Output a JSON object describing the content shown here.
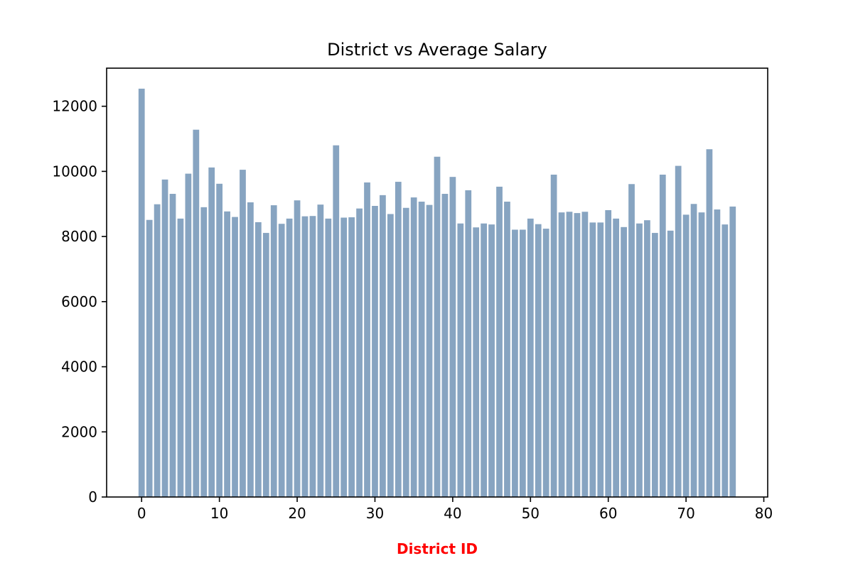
{
  "chart_data": {
    "type": "bar",
    "title": "District vs Average Salary",
    "xlabel": "District ID",
    "ylabel": "",
    "x": [
      0,
      1,
      2,
      3,
      4,
      5,
      6,
      7,
      8,
      9,
      10,
      11,
      12,
      13,
      14,
      15,
      16,
      17,
      18,
      19,
      20,
      21,
      22,
      23,
      24,
      25,
      26,
      27,
      28,
      29,
      30,
      31,
      32,
      33,
      34,
      35,
      36,
      37,
      38,
      39,
      40,
      41,
      42,
      43,
      44,
      45,
      46,
      47,
      48,
      49,
      50,
      51,
      52,
      53,
      54,
      55,
      56,
      57,
      58,
      59,
      60,
      61,
      62,
      63,
      64,
      65,
      66,
      67,
      68,
      69,
      70,
      71,
      72,
      73,
      74,
      75,
      76
    ],
    "values": [
      12540,
      8510,
      8990,
      9750,
      9310,
      8550,
      9930,
      11280,
      8900,
      10120,
      9620,
      8770,
      8600,
      10050,
      9050,
      8440,
      8110,
      8960,
      8390,
      8550,
      9110,
      8620,
      8630,
      8980,
      8550,
      10800,
      8580,
      8590,
      8860,
      9660,
      8940,
      9270,
      8690,
      9680,
      8880,
      9200,
      9070,
      8970,
      10450,
      9310,
      9830,
      8400,
      9420,
      8280,
      8400,
      8370,
      9530,
      9070,
      8210,
      8210,
      8550,
      8380,
      8240,
      9900,
      8740,
      8760,
      8720,
      8760,
      8430,
      8430,
      8810,
      8550,
      8290,
      9610,
      8400,
      8500,
      8110,
      9900,
      8180,
      10170,
      8670,
      9000,
      8740,
      10680,
      8830,
      8370,
      8920
    ],
    "xlim": [
      -4.5,
      80.5
    ],
    "ylim": [
      0,
      13170
    ],
    "xticks": [
      0,
      10,
      20,
      30,
      40,
      50,
      60,
      70,
      80
    ],
    "yticks": [
      0,
      2000,
      4000,
      6000,
      8000,
      10000,
      12000
    ],
    "bar_color": "#87a4c1",
    "xlabel_color": "#ff0000",
    "grid": false,
    "legend": "none"
  }
}
